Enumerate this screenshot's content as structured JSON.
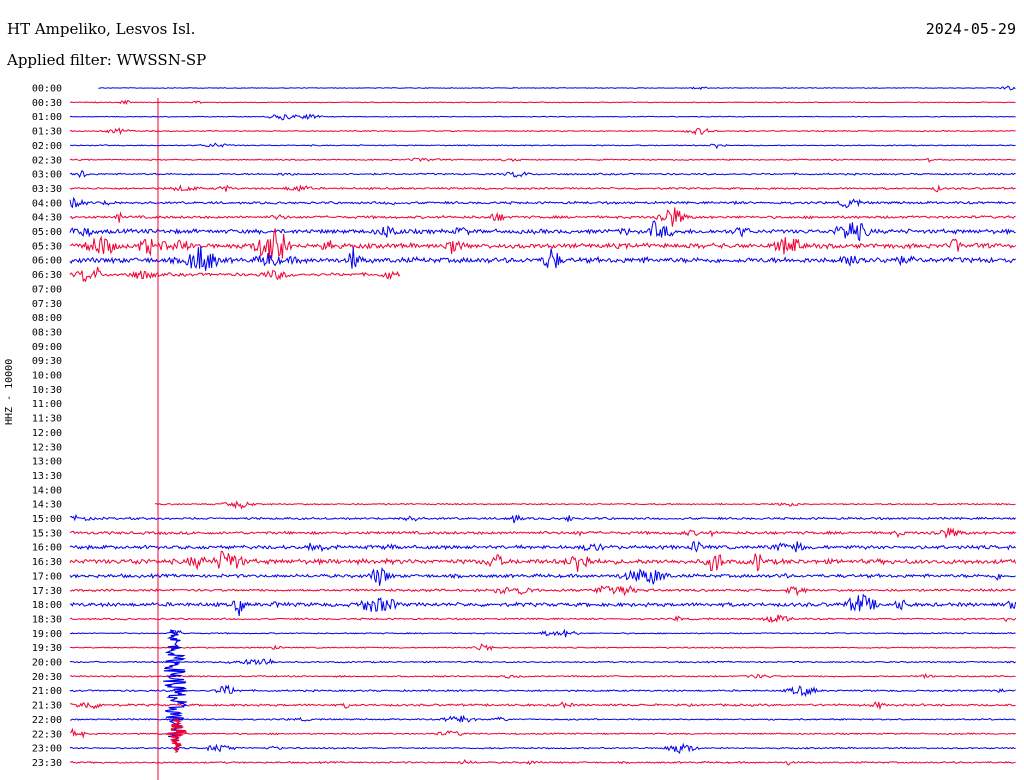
{
  "header": {
    "station": "HT Ampeliko, Lesvos Isl.",
    "filter": "Applied filter: WWSSN-SP",
    "date": "2024-05-29"
  },
  "chart_data": {
    "type": "line",
    "ylabel": "HHZ - 10000",
    "colors": {
      "even": "#0000ee",
      "odd": "#ee0033"
    },
    "rows": [
      {
        "time": "00:00",
        "start": 0.03,
        "end": 1.0,
        "amp": 0.3
      },
      {
        "time": "00:30",
        "start": 0.0,
        "end": 1.0,
        "amp": 0.35
      },
      {
        "time": "01:00",
        "start": 0.0,
        "end": 1.0,
        "amp": 0.35
      },
      {
        "time": "01:30",
        "start": 0.0,
        "end": 1.0,
        "amp": 0.45
      },
      {
        "time": "02:00",
        "start": 0.0,
        "end": 1.0,
        "amp": 0.45
      },
      {
        "time": "02:30",
        "start": 0.0,
        "end": 1.0,
        "amp": 0.5
      },
      {
        "time": "03:00",
        "start": 0.0,
        "end": 1.0,
        "amp": 0.7
      },
      {
        "time": "03:30",
        "start": 0.0,
        "end": 1.0,
        "amp": 0.8
      },
      {
        "time": "04:00",
        "start": 0.0,
        "end": 1.0,
        "amp": 1.0
      },
      {
        "time": "04:30",
        "start": 0.0,
        "end": 1.0,
        "amp": 1.1
      },
      {
        "time": "05:00",
        "start": 0.0,
        "end": 1.0,
        "amp": 1.8
      },
      {
        "time": "05:30",
        "start": 0.0,
        "end": 1.0,
        "amp": 2.0
      },
      {
        "time": "06:00",
        "start": 0.0,
        "end": 1.0,
        "amp": 2.2
      },
      {
        "time": "06:30",
        "start": 0.0,
        "end": 0.35,
        "amp": 1.3
      },
      {
        "time": "07:00",
        "start": 0.0,
        "end": 0.0,
        "amp": 0
      },
      {
        "time": "07:30",
        "start": 0.0,
        "end": 0.0,
        "amp": 0
      },
      {
        "time": "08:00",
        "start": 0.0,
        "end": 0.0,
        "amp": 0
      },
      {
        "time": "08:30",
        "start": 0.0,
        "end": 0.0,
        "amp": 0
      },
      {
        "time": "09:00",
        "start": 0.0,
        "end": 0.0,
        "amp": 0
      },
      {
        "time": "09:30",
        "start": 0.0,
        "end": 0.0,
        "amp": 0
      },
      {
        "time": "10:00",
        "start": 0.0,
        "end": 0.0,
        "amp": 0
      },
      {
        "time": "10:30",
        "start": 0.0,
        "end": 0.0,
        "amp": 0
      },
      {
        "time": "11:00",
        "start": 0.0,
        "end": 0.0,
        "amp": 0
      },
      {
        "time": "11:30",
        "start": 0.0,
        "end": 0.0,
        "amp": 0
      },
      {
        "time": "12:00",
        "start": 0.0,
        "end": 0.0,
        "amp": 0
      },
      {
        "time": "12:30",
        "start": 0.0,
        "end": 0.0,
        "amp": 0
      },
      {
        "time": "13:00",
        "start": 0.0,
        "end": 0.0,
        "amp": 0
      },
      {
        "time": "13:30",
        "start": 0.0,
        "end": 0.0,
        "amp": 0
      },
      {
        "time": "14:00",
        "start": 0.0,
        "end": 0.0,
        "amp": 0
      },
      {
        "time": "14:30",
        "start": 0.09,
        "end": 1.0,
        "amp": 0.6
      },
      {
        "time": "15:00",
        "start": 0.0,
        "end": 1.0,
        "amp": 0.9
      },
      {
        "time": "15:30",
        "start": 0.0,
        "end": 1.0,
        "amp": 1.2
      },
      {
        "time": "16:00",
        "start": 0.0,
        "end": 1.0,
        "amp": 1.5
      },
      {
        "time": "16:30",
        "start": 0.0,
        "end": 1.0,
        "amp": 2.0
      },
      {
        "time": "17:00",
        "start": 0.0,
        "end": 1.0,
        "amp": 1.4
      },
      {
        "time": "17:30",
        "start": 0.0,
        "end": 1.0,
        "amp": 1.0
      },
      {
        "time": "18:00",
        "start": 0.0,
        "end": 1.0,
        "amp": 1.6
      },
      {
        "time": "18:30",
        "start": 0.0,
        "end": 1.0,
        "amp": 0.7
      },
      {
        "time": "19:00",
        "start": 0.0,
        "end": 1.0,
        "amp": 0.5
      },
      {
        "time": "19:30",
        "start": 0.0,
        "end": 1.0,
        "amp": 0.5
      },
      {
        "time": "20:00",
        "start": 0.0,
        "end": 1.0,
        "amp": 0.6
      },
      {
        "time": "20:30",
        "start": 0.0,
        "end": 1.0,
        "amp": 0.6
      },
      {
        "time": "21:00",
        "start": 0.0,
        "end": 1.0,
        "amp": 0.7
      },
      {
        "time": "21:30",
        "start": 0.0,
        "end": 1.0,
        "amp": 0.9
      },
      {
        "time": "22:00",
        "start": 0.0,
        "end": 1.0,
        "amp": 0.6
      },
      {
        "time": "22:30",
        "start": 0.0,
        "end": 1.0,
        "amp": 0.6
      },
      {
        "time": "23:00",
        "start": 0.0,
        "end": 1.0,
        "amp": 0.6
      },
      {
        "time": "23:30",
        "start": 0.0,
        "end": 1.0,
        "amp": 0.7
      }
    ]
  }
}
